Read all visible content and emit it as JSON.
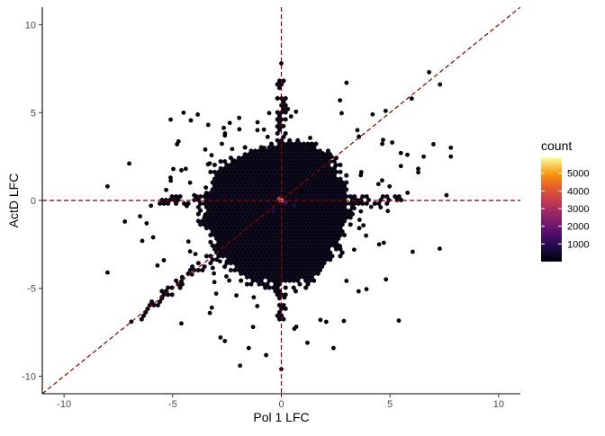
{
  "chart_data": {
    "type": "hexbin",
    "title": "",
    "xlabel": "Pol 1 LFC",
    "ylabel": "ActD LFC",
    "xlim": [
      -11,
      11
    ],
    "ylim": [
      -11,
      11
    ],
    "x_ticks": [
      -10,
      -5,
      0,
      5,
      10
    ],
    "y_ticks": [
      -10,
      -5,
      0,
      5,
      10
    ],
    "grid": false,
    "reference_lines": [
      {
        "type": "vline",
        "x": 0,
        "style": "dashed",
        "color": "#8b0000"
      },
      {
        "type": "hline",
        "y": 0,
        "style": "dashed",
        "color": "#8b0000"
      },
      {
        "type": "abline",
        "slope": 1,
        "intercept": 0,
        "style": "dashed",
        "color": "#8b0000"
      }
    ],
    "fill_scale": {
      "name": "count",
      "palette": "inferno",
      "min": 1,
      "max": 5900,
      "breaks": [
        1000,
        2000,
        3000,
        4000,
        5000
      ]
    },
    "legend_position": "right",
    "data_description": "dense cloud centered near (0,0), mostly within x -3..3 and y -5..4, with sparse outliers out to about x -8..8 and y -9..8",
    "hexes": [
      {
        "x": 0,
        "y": 0,
        "count": 5900
      },
      {
        "x": -0.1,
        "y": 0.1,
        "count": 3500
      },
      {
        "x": 0.2,
        "y": -0.1,
        "count": 1800
      },
      {
        "x": 0.6,
        "y": -0.3,
        "count": 1200
      },
      {
        "x": -0.4,
        "y": -0.6,
        "count": 600
      },
      {
        "x": 0.9,
        "y": 0.5,
        "count": 400
      }
    ],
    "outliers": [
      [
        -8,
        -4.1
      ],
      [
        -8,
        0.8
      ],
      [
        -7.2,
        -1.2
      ],
      [
        -7,
        2.1
      ],
      [
        -6.9,
        -6.9
      ],
      [
        -6.5,
        -0.9
      ],
      [
        -6.4,
        -2.3
      ],
      [
        -6.2,
        -1.3
      ],
      [
        -6.0,
        -0.3
      ],
      [
        -5.9,
        -2.1
      ],
      [
        -5.7,
        -3.7
      ],
      [
        -5.5,
        -5.5
      ],
      [
        -5.3,
        0.6
      ],
      [
        -5.1,
        1.3
      ],
      [
        -4.8,
        3.2
      ],
      [
        -4.6,
        -4.6
      ],
      [
        -4.4,
        1.8
      ],
      [
        -4.2,
        -2.9
      ],
      [
        -4.6,
        -7.0
      ],
      [
        -3.5,
        2.9
      ],
      [
        -3.2,
        -6.1
      ],
      [
        -3.0,
        -5.3
      ],
      [
        -2.8,
        -7.8
      ],
      [
        -2.6,
        -8.0
      ],
      [
        -1.9,
        -9.4
      ],
      [
        -1.5,
        -8.4
      ],
      [
        -1.3,
        -7.2
      ],
      [
        -1.1,
        4.0
      ],
      [
        -0.7,
        -8.8
      ],
      [
        0.0,
        7.8
      ],
      [
        0.0,
        -9.6
      ],
      [
        0.3,
        5.2
      ],
      [
        0.6,
        -7.3
      ],
      [
        1.2,
        -8.1
      ],
      [
        1.8,
        -6.8
      ],
      [
        2.4,
        -8.4
      ],
      [
        2.7,
        5.7
      ],
      [
        2.7,
        -2.6
      ],
      [
        3.0,
        6.7
      ],
      [
        3.5,
        4.0
      ],
      [
        3.6,
        -1.1
      ],
      [
        3.9,
        -2.0
      ],
      [
        4.2,
        4.9
      ],
      [
        4.5,
        -2.5
      ],
      [
        4.8,
        5.1
      ],
      [
        4.9,
        -0.6
      ],
      [
        5.1,
        3.3
      ],
      [
        5.5,
        2.7
      ],
      [
        5.8,
        2.6
      ],
      [
        6.0,
        5.8
      ],
      [
        6.3,
        1.8
      ],
      [
        6.8,
        7.3
      ],
      [
        7.0,
        3.2
      ],
      [
        7.3,
        6.6
      ],
      [
        7.6,
        0.3
      ],
      [
        7.8,
        3.0
      ],
      [
        7.8,
        2.5
      ],
      [
        6.3,
        1.6
      ]
    ]
  }
}
